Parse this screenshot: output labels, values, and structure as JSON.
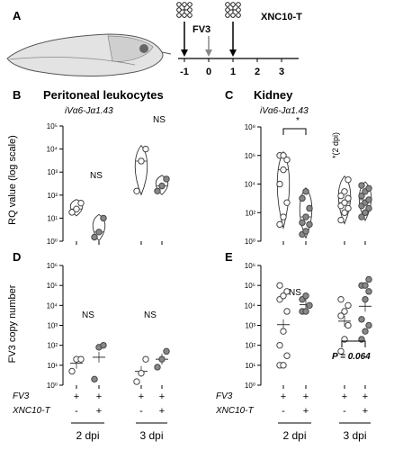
{
  "panel_a": {
    "letter": "A",
    "timeline_ticks": [
      "-1",
      "0",
      "1",
      "2",
      "3"
    ],
    "fv3_label": "FV3",
    "treatment_label": "XNC10-T"
  },
  "chart_data": [
    {
      "panel": "B",
      "type": "scatter",
      "title": "Peritoneal leukocytes",
      "subtitle": "iVα6-Jα1.43",
      "ylabel": "RQ value (log scale)",
      "yscale": "log",
      "ylim": [
        1,
        100000
      ],
      "yticks": [
        "10⁰",
        "10¹",
        "10²",
        "10³",
        "10⁴",
        "10⁵"
      ],
      "violins": true,
      "groups": [
        {
          "open": true,
          "values": [
            18,
            25,
            45
          ]
        },
        {
          "open": false,
          "values": [
            1.5,
            2.5,
            10
          ]
        },
        {
          "open": true,
          "values": [
            150,
            3000,
            10000
          ]
        },
        {
          "open": false,
          "values": [
            150,
            250,
            500
          ]
        }
      ],
      "annotations": [
        "NS",
        "NS"
      ]
    },
    {
      "panel": "C",
      "type": "scatter",
      "title": "Kidney",
      "subtitle": "iVα6-Jα1.43",
      "side_note": "*(2 dpi)",
      "yscale": "log",
      "ylim": [
        1,
        100000000
      ],
      "yticks": [
        "10⁰",
        "10²",
        "10⁴",
        "10⁶",
        "10⁸"
      ],
      "violins": true,
      "groups": [
        {
          "open": true,
          "values": [
            15,
            50,
            500,
            10000,
            100000,
            500000,
            1000000,
            1000000
          ]
        },
        {
          "open": false,
          "values": [
            3,
            5,
            15,
            20,
            50,
            200,
            1000,
            3000
          ]
        },
        {
          "open": true,
          "values": [
            30,
            100,
            200,
            300,
            500,
            1000,
            1500,
            3000,
            20000
          ]
        },
        {
          "open": false,
          "values": [
            50,
            100,
            200,
            300,
            500,
            800,
            1500,
            3000,
            5000,
            8000
          ]
        }
      ],
      "annotations": [
        "*"
      ]
    },
    {
      "panel": "D",
      "type": "scatter",
      "ylabel": "FV3 copy number",
      "yscale": "log",
      "ylim": [
        1,
        1000000
      ],
      "yticks": [
        "10⁰",
        "10¹",
        "10²",
        "10³",
        "10⁴",
        "10⁵",
        "10⁶"
      ],
      "violins": false,
      "groups": [
        {
          "open": true,
          "values": [
            5,
            20,
            20
          ]
        },
        {
          "open": false,
          "values": [
            2,
            80,
            100
          ]
        },
        {
          "open": true,
          "values": [
            1.5,
            4,
            20
          ]
        },
        {
          "open": false,
          "values": [
            8,
            20,
            50
          ]
        }
      ],
      "annotations": [
        "NS",
        "NS"
      ]
    },
    {
      "panel": "E",
      "type": "scatter",
      "yscale": "log",
      "ylim": [
        1,
        1000000
      ],
      "yticks": [
        "10⁰",
        "10¹",
        "10²",
        "10³",
        "10⁴",
        "10⁵",
        "10⁶"
      ],
      "violins": false,
      "groups": [
        {
          "open": true,
          "values": [
            10,
            10,
            30,
            100,
            500,
            5000,
            20000,
            30000,
            50000,
            100000
          ]
        },
        {
          "open": false,
          "values": [
            5000,
            5000,
            10000,
            20000,
            30000
          ]
        },
        {
          "open": true,
          "values": [
            50,
            200,
            1000,
            3000,
            5000,
            10000,
            20000
          ]
        },
        {
          "open": false,
          "values": [
            200,
            500,
            1000,
            2000,
            20000,
            50000,
            100000,
            100000,
            200000
          ]
        }
      ],
      "annotations": [
        "NS",
        "P = 0.064"
      ]
    }
  ],
  "group_colors": {
    "open_fill": "#ffffff",
    "filled": "#888888",
    "stroke": "#444444"
  },
  "x_rows": {
    "labels": [
      "FV3",
      "XNC10-T"
    ],
    "fv3_row": [
      "+",
      "+",
      "+",
      "+"
    ],
    "xnc_row": [
      "-",
      "+",
      "-",
      "+"
    ],
    "days": [
      "2 dpi",
      "3 dpi"
    ]
  }
}
